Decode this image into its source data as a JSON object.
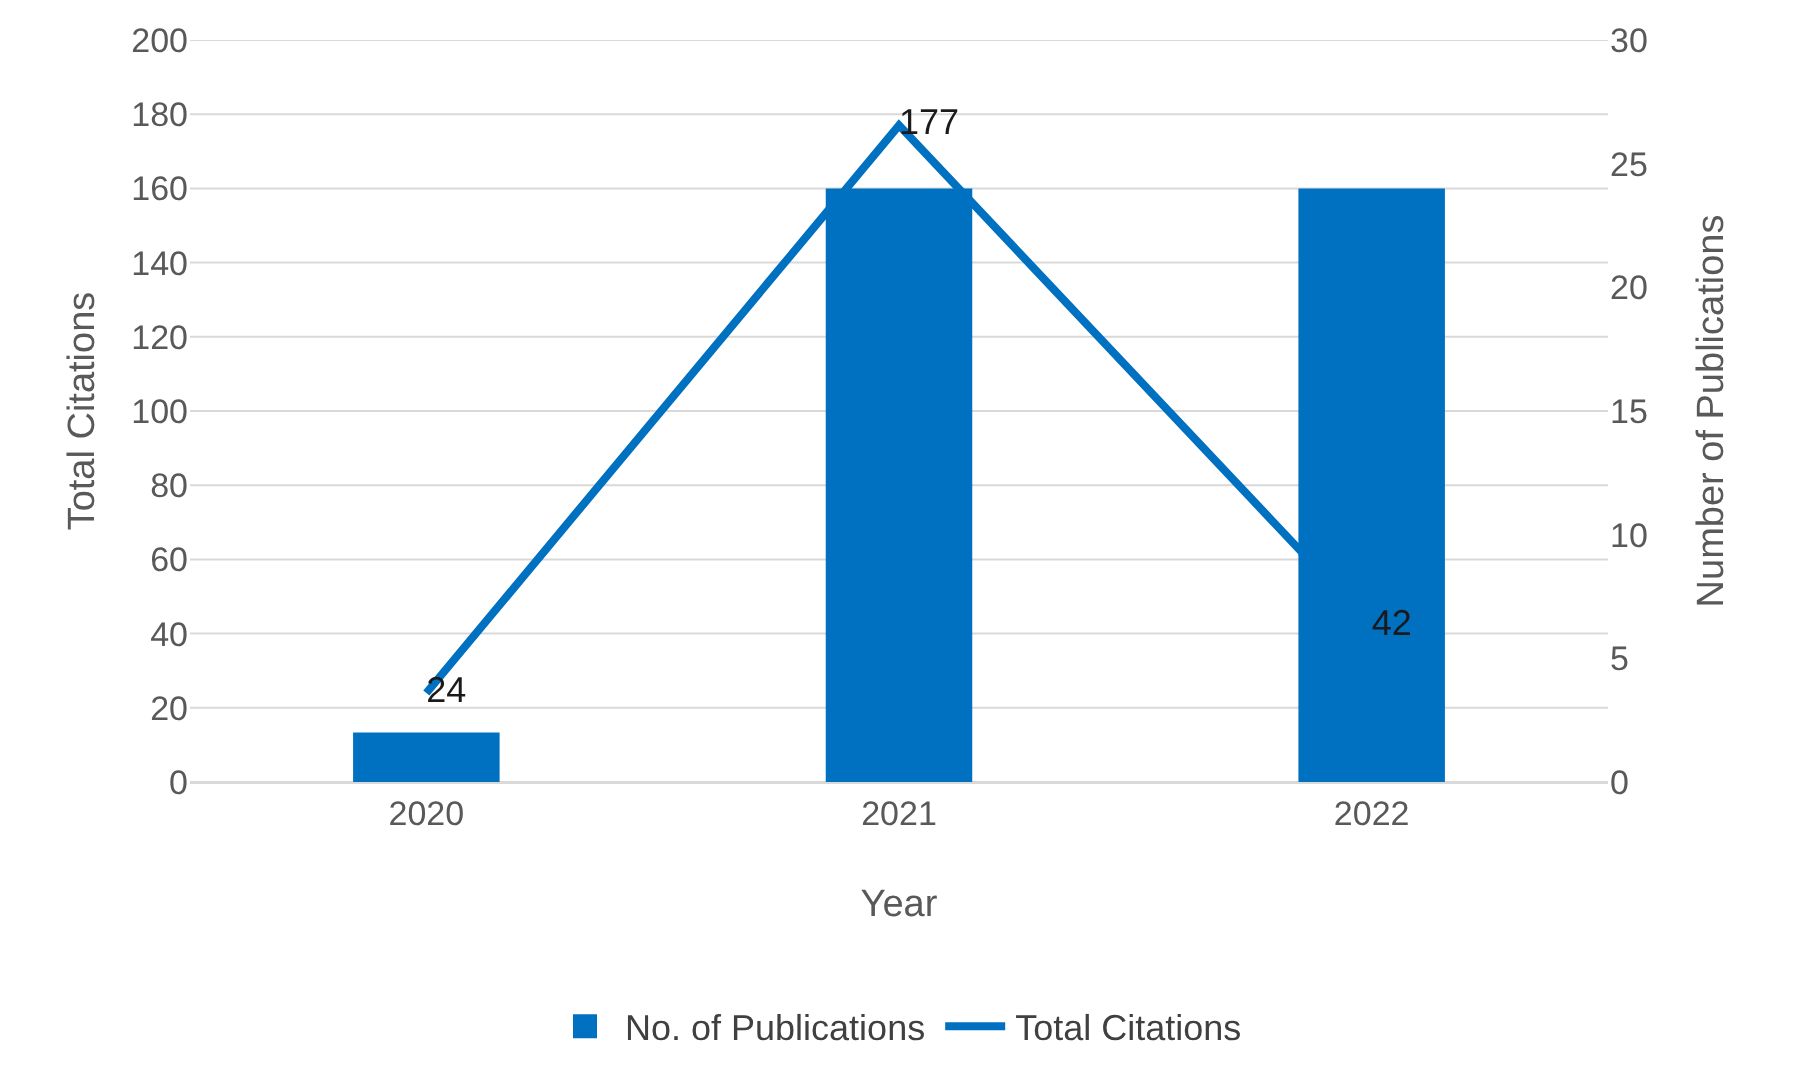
{
  "chart_data": {
    "type": "bar",
    "xlabel": "Year",
    "ylabel": "Total Citations",
    "y2label": "Number of Publications",
    "categories": [
      "2020",
      "2021",
      "2022"
    ],
    "series": [
      {
        "name": "No. of Publications",
        "axis": "y2",
        "color": "#0070c0",
        "values": [
          2,
          24,
          24
        ]
      },
      {
        "name": "Total Citations",
        "type": "line",
        "axis": "y",
        "color": "#0070c0",
        "values": [
          24,
          177,
          42
        ],
        "value_labels": [
          "24",
          "177",
          "42"
        ],
        "marker": "none"
      }
    ],
    "ylim": [
      0,
      200
    ],
    "yticks": [
      0,
      20,
      40,
      60,
      80,
      100,
      120,
      140,
      160,
      180,
      200
    ],
    "y2lim": [
      0,
      30
    ],
    "y2ticks": [
      0,
      5,
      10,
      15,
      20,
      25,
      30
    ],
    "grid": "y",
    "legend": "bottom"
  }
}
